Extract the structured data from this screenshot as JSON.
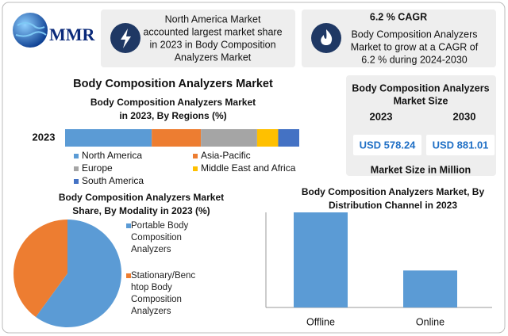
{
  "header": {
    "logo": "MMR"
  },
  "info_boxes": [
    {
      "lines": [
        "North America Market",
        "accounted largest market share",
        "in 2023 in Body Composition",
        "Analyzers Market"
      ]
    },
    {
      "title": "6.2 % CAGR",
      "lines": [
        "Body Composition Analyzers",
        "Market to grow at a CAGR of",
        "6.2 % during 2024-2030"
      ]
    }
  ],
  "heading": "Body Composition Analyzers Market",
  "market_size": {
    "title": [
      "Body Composition Analyzers",
      "Market Size"
    ],
    "years": [
      "2023",
      "2030"
    ],
    "values": [
      "USD 578.24",
      "USD 881.01"
    ],
    "footer": "Market Size in Million"
  },
  "chart_data": [
    {
      "type": "stacked_bar",
      "title": [
        "Body Composition Analyzers Market",
        "in 2023, By Regions (%)"
      ],
      "categories": [
        "2023"
      ],
      "series": [
        {
          "name": "North America",
          "color": "#5b9bd5",
          "values": [
            37
          ]
        },
        {
          "name": "Asia-Pacific",
          "color": "#ed7d31",
          "values": [
            21
          ]
        },
        {
          "name": "Europe",
          "color": "#a5a5a5",
          "values": [
            24
          ]
        },
        {
          "name": "Middle East and Africa",
          "color": "#ffc000",
          "values": [
            9
          ]
        },
        {
          "name": "South America",
          "color": "#4472c4",
          "values": [
            9
          ]
        }
      ]
    },
    {
      "type": "pie",
      "title": [
        "Body Composition Analyzers Market",
        "Share, By Modality in 2023  (%)"
      ],
      "categories": [
        "Portable Body Composition Analyzers",
        "Stationary/Benchtop Body Composition Analyzers"
      ],
      "values": [
        60,
        40
      ],
      "colors": [
        "#5b9bd5",
        "#ed7d31"
      ]
    },
    {
      "type": "bar",
      "title": [
        "Body Composition Analyzers Market, By",
        "Distribution Channel in 2023"
      ],
      "categories": [
        "Offline",
        "Online"
      ],
      "values": [
        72,
        28
      ],
      "color": "#5b9bd5"
    }
  ]
}
